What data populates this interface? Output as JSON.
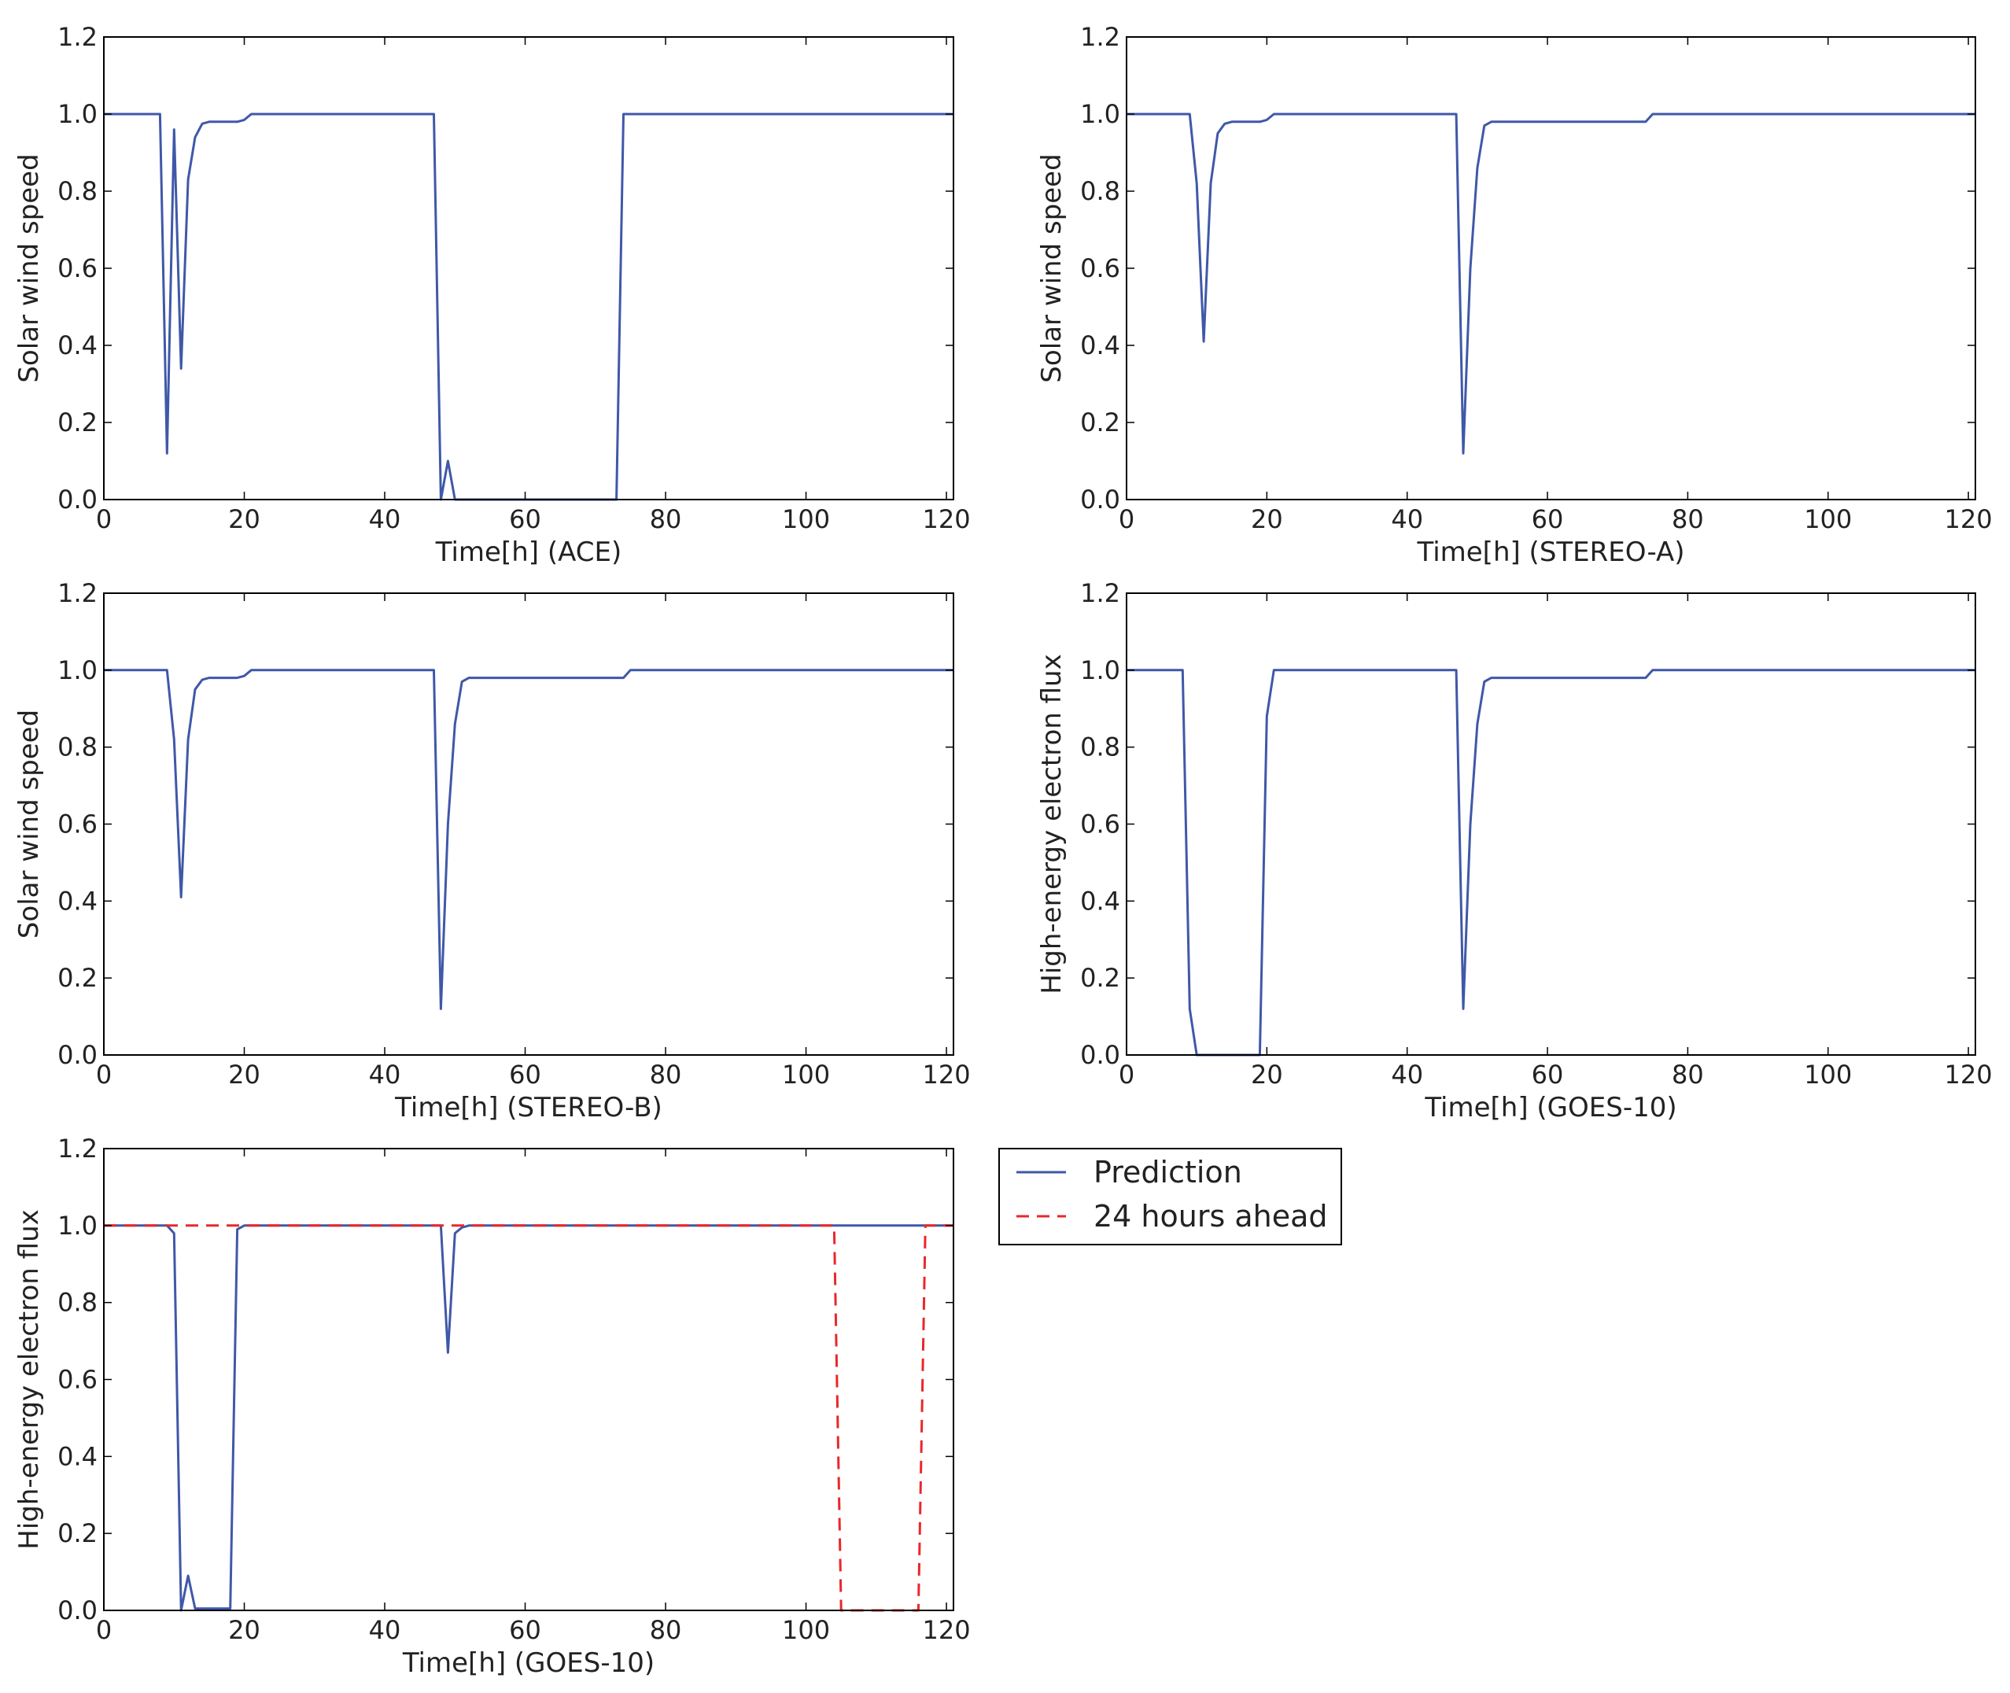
{
  "legend": {
    "placement": "right-of-bottom-panel",
    "entries": [
      {
        "label": "Prediction",
        "color": "#3f58a8",
        "style": "solid"
      },
      {
        "label": "24 hours ahead",
        "color": "#e8282b",
        "style": "dashed"
      }
    ]
  },
  "chart_data": [
    {
      "type": "line",
      "xlabel": "Time[h] (ACE)",
      "ylabel": "Solar wind speed",
      "xlim": [
        0,
        121
      ],
      "ylim": [
        0,
        1.2
      ],
      "xticks": [
        "0",
        "20",
        "40",
        "60",
        "80",
        "100",
        "120"
      ],
      "yticks": [
        "0.0",
        "0.2",
        "0.4",
        "0.6",
        "0.8",
        "1.0",
        "1.2"
      ],
      "grid": false,
      "series": [
        {
          "color": "#3f58a8",
          "style": "solid",
          "points": [
            [
              0,
              1.0
            ],
            [
              8,
              1.0
            ],
            [
              9,
              0.12
            ],
            [
              10,
              0.96
            ],
            [
              11,
              0.34
            ],
            [
              12,
              0.83
            ],
            [
              13,
              0.94
            ],
            [
              14,
              0.975
            ],
            [
              15,
              0.98
            ],
            [
              19,
              0.98
            ],
            [
              20,
              0.985
            ],
            [
              21,
              1.0
            ],
            [
              47,
              1.0
            ],
            [
              48,
              0.0
            ],
            [
              49,
              0.1
            ],
            [
              50,
              0.0
            ],
            [
              73,
              0.0
            ],
            [
              74,
              1.0
            ],
            [
              121,
              1.0
            ]
          ]
        }
      ]
    },
    {
      "type": "line",
      "xlabel": "Time[h] (STEREO-A)",
      "ylabel": "Solar wind speed",
      "xlim": [
        0,
        121
      ],
      "ylim": [
        0,
        1.2
      ],
      "xticks": [
        "0",
        "20",
        "40",
        "60",
        "80",
        "100",
        "120"
      ],
      "yticks": [
        "0.0",
        "0.2",
        "0.4",
        "0.6",
        "0.8",
        "1.0",
        "1.2"
      ],
      "grid": false,
      "series": [
        {
          "color": "#3f58a8",
          "style": "solid",
          "points": [
            [
              0,
              1.0
            ],
            [
              9,
              1.0
            ],
            [
              10,
              0.82
            ],
            [
              11,
              0.41
            ],
            [
              12,
              0.82
            ],
            [
              13,
              0.95
            ],
            [
              14,
              0.975
            ],
            [
              15,
              0.98
            ],
            [
              19,
              0.98
            ],
            [
              20,
              0.985
            ],
            [
              21,
              1.0
            ],
            [
              47,
              1.0
            ],
            [
              48,
              0.12
            ],
            [
              49,
              0.6
            ],
            [
              50,
              0.86
            ],
            [
              51,
              0.97
            ],
            [
              52,
              0.98
            ],
            [
              74,
              0.98
            ],
            [
              75,
              1.0
            ],
            [
              121,
              1.0
            ]
          ]
        }
      ]
    },
    {
      "type": "line",
      "xlabel": "Time[h] (STEREO-B)",
      "ylabel": "Solar wind speed",
      "xlim": [
        0,
        121
      ],
      "ylim": [
        0,
        1.2
      ],
      "xticks": [
        "0",
        "20",
        "40",
        "60",
        "80",
        "100",
        "120"
      ],
      "yticks": [
        "0.0",
        "0.2",
        "0.4",
        "0.6",
        "0.8",
        "1.0",
        "1.2"
      ],
      "grid": false,
      "series": [
        {
          "color": "#3f58a8",
          "style": "solid",
          "points": [
            [
              0,
              1.0
            ],
            [
              9,
              1.0
            ],
            [
              10,
              0.82
            ],
            [
              11,
              0.41
            ],
            [
              12,
              0.82
            ],
            [
              13,
              0.95
            ],
            [
              14,
              0.975
            ],
            [
              15,
              0.98
            ],
            [
              19,
              0.98
            ],
            [
              20,
              0.985
            ],
            [
              21,
              1.0
            ],
            [
              47,
              1.0
            ],
            [
              48,
              0.12
            ],
            [
              49,
              0.6
            ],
            [
              50,
              0.86
            ],
            [
              51,
              0.97
            ],
            [
              52,
              0.98
            ],
            [
              74,
              0.98
            ],
            [
              75,
              1.0
            ],
            [
              121,
              1.0
            ]
          ]
        }
      ]
    },
    {
      "type": "line",
      "xlabel": "Time[h] (GOES-10)",
      "ylabel": "High-energy electron flux",
      "xlim": [
        0,
        121
      ],
      "ylim": [
        0,
        1.2
      ],
      "xticks": [
        "0",
        "20",
        "40",
        "60",
        "80",
        "100",
        "120"
      ],
      "yticks": [
        "0.0",
        "0.2",
        "0.4",
        "0.6",
        "0.8",
        "1.0",
        "1.2"
      ],
      "grid": false,
      "series": [
        {
          "color": "#3f58a8",
          "style": "solid",
          "points": [
            [
              0,
              1.0
            ],
            [
              8,
              1.0
            ],
            [
              9,
              0.12
            ],
            [
              10,
              0.0
            ],
            [
              19,
              0.0
            ],
            [
              20,
              0.88
            ],
            [
              21,
              1.0
            ],
            [
              47,
              1.0
            ],
            [
              48,
              0.12
            ],
            [
              49,
              0.6
            ],
            [
              50,
              0.86
            ],
            [
              51,
              0.97
            ],
            [
              52,
              0.98
            ],
            [
              74,
              0.98
            ],
            [
              75,
              1.0
            ],
            [
              121,
              1.0
            ]
          ]
        }
      ]
    },
    {
      "type": "line",
      "xlabel": "Time[h] (GOES-10)",
      "ylabel": "High-energy electron flux",
      "xlim": [
        0,
        121
      ],
      "ylim": [
        0,
        1.2
      ],
      "xticks": [
        "0",
        "20",
        "40",
        "60",
        "80",
        "100",
        "120"
      ],
      "yticks": [
        "0.0",
        "0.2",
        "0.4",
        "0.6",
        "0.8",
        "1.0",
        "1.2"
      ],
      "grid": false,
      "series": [
        {
          "color": "#3f58a8",
          "style": "solid",
          "points": [
            [
              0,
              1.0
            ],
            [
              9,
              1.0
            ],
            [
              10,
              0.98
            ],
            [
              11,
              0.0
            ],
            [
              12,
              0.09
            ],
            [
              13,
              0.005
            ],
            [
              18,
              0.005
            ],
            [
              19,
              0.99
            ],
            [
              20,
              1.0
            ],
            [
              48,
              1.0
            ],
            [
              49,
              0.67
            ],
            [
              50,
              0.98
            ],
            [
              51,
              0.995
            ],
            [
              52,
              1.0
            ],
            [
              121,
              1.0
            ]
          ]
        },
        {
          "color": "#e8282b",
          "style": "dashed",
          "points": [
            [
              0,
              1.0
            ],
            [
              104,
              1.0
            ],
            [
              105,
              0.0
            ],
            [
              116,
              0.0
            ],
            [
              117,
              1.0
            ],
            [
              121,
              1.0
            ]
          ]
        }
      ]
    }
  ]
}
